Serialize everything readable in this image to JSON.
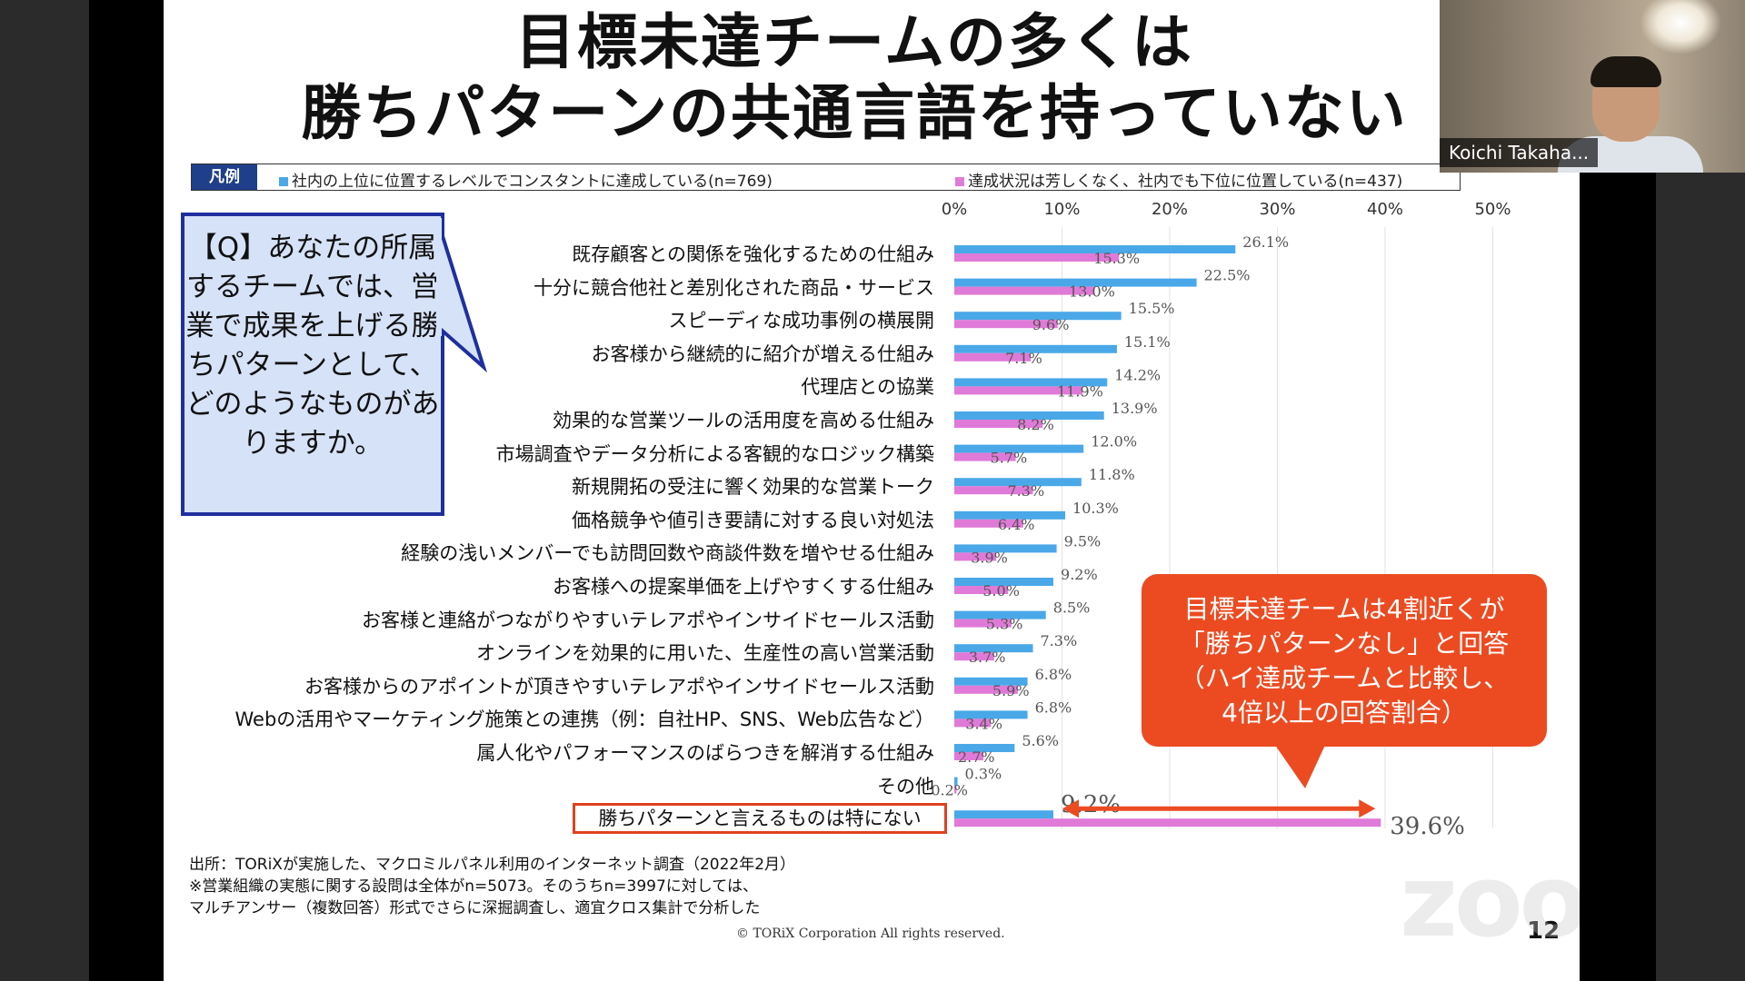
{
  "slide": {
    "title_line1": "目標未達チームの多くは",
    "title_line2": "勝ちパターンの共通言語を持っていない",
    "legend": {
      "tag": "凡例",
      "series_a": "社内の上位に位置するレベルでコンスタントに達成している(n=769)",
      "series_b": "達成状況は芳しくなく、社内でも下位に位置している(n=437)"
    },
    "question_box": "【Q】あなたの所属するチームでは、営業で成果を上げる勝ちパターンとして、どのようなものがありますか。",
    "callout": [
      "目標未達チームは4割近くが",
      "「勝ちパターンなし」と回答",
      "（ハイ達成チームと比較し、",
      "4倍以上の回答割合）"
    ],
    "footer": [
      "出所：TORiXが実施した、マクロミルパネル利用のインターネット調査（2022年2月）",
      "※営業組織の実態に関する設問は全体がn=5073。そのうちn=3997に対しては、",
      "マルチアンサー（複数回答）形式でさらに深掘調査し、適宜クロス集計で分析した"
    ],
    "copyright": "© TORiX Corporation All rights reserved.",
    "page_number": "12"
  },
  "colors": {
    "series_a": "#4aa8e8",
    "series_b": "#e07ad8",
    "accent": "#ec4b22",
    "navy": "#1f3f8a"
  },
  "chart_data": {
    "type": "bar",
    "orientation": "horizontal",
    "xlim": [
      0,
      50
    ],
    "ticks": [
      "0%",
      "10%",
      "20%",
      "30%",
      "40%",
      "50%"
    ],
    "grid": true,
    "categories": [
      "既存顧客との関係を強化するための仕組み",
      "十分に競合他社と差別化された商品・サービス",
      "スピーディな成功事例の横展開",
      "お客様から継続的に紹介が増える仕組み",
      "代理店との協業",
      "効果的な営業ツールの活用度を高める仕組み",
      "市場調査やデータ分析による客観的なロジック構築",
      "新規開拓の受注に響く効果的な営業トーク",
      "価格競争や値引き要請に対する良い対処法",
      "経験の浅いメンバーでも訪問回数や商談件数を増やせる仕組み",
      "お客様への提案単価を上げやすくする仕組み",
      "お客様と連絡がつながりやすいテレアポやインサイドセールス活動",
      "オンラインを効果的に用いた、生産性の高い営業活動",
      "お客様からのアポイントが頂きやすいテレアポやインサイドセールス活動",
      "Webの活用やマーケティング施策との連携（例：自社HP、SNS、Web広告など）",
      "属人化やパフォーマンスのばらつきを解消する仕組み",
      "その他",
      "勝ちパターンと言えるものは特にない"
    ],
    "series": [
      {
        "name": "社内の上位に位置するレベルでコンスタントに達成している(n=769)",
        "values": [
          26.1,
          22.5,
          15.5,
          15.1,
          14.2,
          13.9,
          12.0,
          11.8,
          10.3,
          9.5,
          9.2,
          8.5,
          7.3,
          6.8,
          6.8,
          5.6,
          0.3,
          9.2
        ],
        "labels": [
          "26.1%",
          "22.5%",
          "15.5%",
          "15.1%",
          "14.2%",
          "13.9%",
          "12.0%",
          "11.8%",
          "10.3%",
          "9.5%",
          "9.2%",
          "8.5%",
          "7.3%",
          "6.8%",
          "6.8%",
          "5.6%",
          "0.3%",
          "9.2%"
        ]
      },
      {
        "name": "達成状況は芳しくなく、社内でも下位に位置している(n=437)",
        "values": [
          15.3,
          13.0,
          9.6,
          7.1,
          11.9,
          8.2,
          5.7,
          7.3,
          6.4,
          3.9,
          5.0,
          5.3,
          3.7,
          5.9,
          3.4,
          2.7,
          0.2,
          39.6
        ],
        "labels": [
          "15.3%",
          "13.0%",
          "9.6%",
          "7.1%",
          "11.9%",
          "8.2%",
          "5.7%",
          "7.3%",
          "6.4%",
          "3.9%",
          "5.0%",
          "5.3%",
          "3.7%",
          "5.9%",
          "3.4%",
          "2.7%",
          "0.2%",
          "39.6%"
        ]
      }
    ]
  },
  "video": {
    "participant_name": "Koichi Takaha..."
  },
  "watermark": "zoom"
}
